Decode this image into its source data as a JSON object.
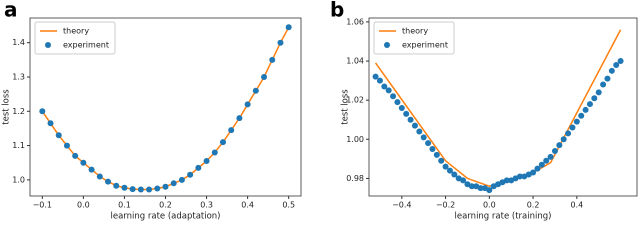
{
  "chart_data": [
    {
      "type": "line",
      "panel": "a",
      "xlabel": "learning rate (adaptation)",
      "ylabel": "test loss",
      "xlim": [
        -0.13,
        0.53
      ],
      "ylim": [
        0.953,
        1.472
      ],
      "xticks": [
        {
          "value": -0.1,
          "label": "−0.1"
        },
        {
          "value": 0,
          "label": "0.0"
        },
        0.1,
        0.2,
        0.3,
        0.4,
        0.5
      ],
      "yticks": [
        {
          "value": 1,
          "label": "1.0"
        },
        1.1,
        1.2,
        1.3,
        1.4
      ],
      "legend": "upper left",
      "series": [
        {
          "name": "theory",
          "color": "#ff7f0e",
          "style": "line",
          "x": [
            -0.1,
            -0.08,
            -0.06,
            -0.04,
            -0.02,
            0,
            0.02,
            0.04,
            0.06,
            0.08,
            0.1,
            0.12,
            0.14,
            0.16,
            0.18,
            0.2,
            0.22,
            0.24,
            0.26,
            0.28,
            0.3,
            0.32,
            0.34,
            0.36,
            0.38,
            0.4,
            0.42,
            0.44,
            0.46,
            0.48,
            0.5
          ],
          "values": [
            1.2,
            1.165,
            1.13,
            1.1,
            1.07,
            1.05,
            1.03,
            1.01,
            0.995,
            0.983,
            0.977,
            0.973,
            0.972,
            0.972,
            0.975,
            0.98,
            0.99,
            1.0,
            1.015,
            1.035,
            1.055,
            1.08,
            1.11,
            1.145,
            1.18,
            1.22,
            1.26,
            1.3,
            1.35,
            1.4,
            1.445
          ]
        },
        {
          "name": "experiment",
          "color": "#1f77b4",
          "style": "points",
          "x": [
            -0.1,
            -0.08,
            -0.06,
            -0.04,
            -0.02,
            0,
            0.02,
            0.04,
            0.06,
            0.08,
            0.1,
            0.12,
            0.14,
            0.16,
            0.18,
            0.2,
            0.22,
            0.24,
            0.26,
            0.28,
            0.3,
            0.32,
            0.34,
            0.36,
            0.38,
            0.4,
            0.42,
            0.44,
            0.46,
            0.48,
            0.5
          ],
          "values": [
            1.2,
            1.165,
            1.13,
            1.1,
            1.07,
            1.05,
            1.03,
            1.01,
            0.995,
            0.983,
            0.977,
            0.973,
            0.972,
            0.972,
            0.975,
            0.98,
            0.99,
            1.0,
            1.015,
            1.035,
            1.055,
            1.08,
            1.11,
            1.145,
            1.18,
            1.22,
            1.26,
            1.3,
            1.35,
            1.4,
            1.445
          ]
        }
      ]
    },
    {
      "type": "line",
      "panel": "b",
      "xlabel": "learning rate (training)",
      "ylabel": "test loss",
      "xlim": [
        -0.55,
        0.675
      ],
      "ylim": [
        0.971,
        1.062
      ],
      "xticks": [
        {
          "value": -0.4,
          "label": "−0.4"
        },
        {
          "value": -0.2,
          "label": "−0.2"
        },
        {
          "value": 0,
          "label": "0.0"
        },
        0.2,
        0.4
      ],
      "yticks": [
        {
          "value": 0.98,
          "label": "0.98"
        },
        {
          "value": 1,
          "label": "1.00"
        },
        1.02,
        1.04,
        1.06
      ],
      "legend": "upper left",
      "series": [
        {
          "name": "theory",
          "color": "#ff7f0e",
          "style": "line",
          "x": [
            -0.52,
            -0.2,
            -0.1,
            0,
            0.1,
            0.2,
            0.28,
            0.6
          ],
          "values": [
            1.039,
            0.989,
            0.98,
            0.976,
            0.979,
            0.983,
            0.988,
            1.056
          ]
        },
        {
          "name": "experiment",
          "color": "#1f77b4",
          "style": "points",
          "x": [
            -0.52,
            -0.5,
            -0.48,
            -0.46,
            -0.44,
            -0.42,
            -0.4,
            -0.38,
            -0.36,
            -0.34,
            -0.32,
            -0.3,
            -0.28,
            -0.26,
            -0.24,
            -0.22,
            -0.2,
            -0.18,
            -0.16,
            -0.14,
            -0.12,
            -0.1,
            -0.08,
            -0.06,
            -0.04,
            -0.02,
            0,
            0.02,
            0.04,
            0.06,
            0.08,
            0.1,
            0.12,
            0.14,
            0.16,
            0.18,
            0.2,
            0.22,
            0.24,
            0.26,
            0.28,
            0.3,
            0.32,
            0.34,
            0.36,
            0.38,
            0.4,
            0.42,
            0.44,
            0.46,
            0.48,
            0.5,
            0.52,
            0.54,
            0.56,
            0.58,
            0.6
          ],
          "values": [
            1.032,
            1.03,
            1.027,
            1.025,
            1.022,
            1.019,
            1.016,
            1.013,
            1.01,
            1.007,
            1.004,
            1.001,
            0.998,
            0.995,
            0.992,
            0.989,
            0.986,
            0.984,
            0.982,
            0.98,
            0.979,
            0.977,
            0.976,
            0.976,
            0.975,
            0.975,
            0.974,
            0.976,
            0.977,
            0.978,
            0.979,
            0.979,
            0.98,
            0.981,
            0.981,
            0.982,
            0.983,
            0.985,
            0.987,
            0.989,
            0.991,
            0.994,
            0.997,
            1.0,
            1.003,
            1.006,
            1.009,
            1.012,
            1.015,
            1.018,
            1.021,
            1.024,
            1.028,
            1.031,
            1.035,
            1.038,
            1.04
          ]
        }
      ]
    }
  ]
}
